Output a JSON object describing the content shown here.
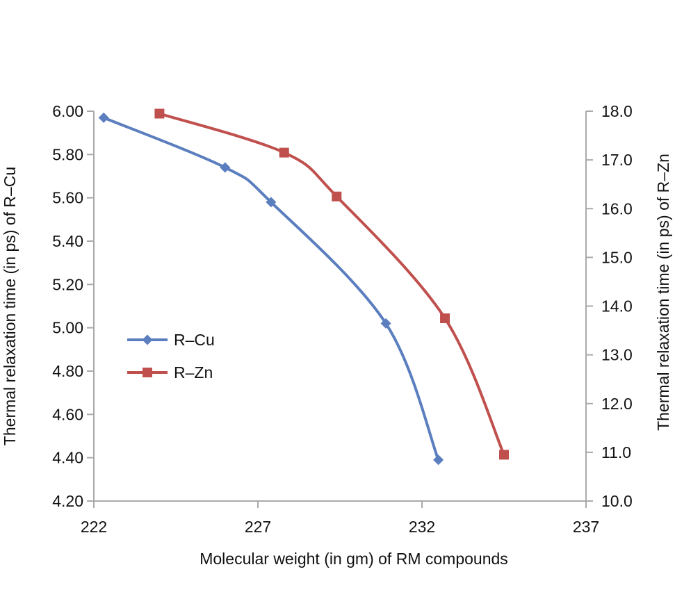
{
  "chart_data": {
    "type": "line",
    "xlabel": "Molecular weight (in gm) of RM compounds",
    "ylabel": "Thermal relaxation time (in ps) of R–Cu",
    "y2label": "Thermal relaxation time (in ps) of R–Zn",
    "xlim": [
      222,
      237
    ],
    "ylim": [
      4.2,
      6.0
    ],
    "y2lim": [
      10.0,
      18.0
    ],
    "x_ticks": [
      "222",
      "227",
      "232",
      "237"
    ],
    "y_ticks": [
      "4.20",
      "4.40",
      "4.60",
      "4.80",
      "5.00",
      "5.20",
      "5.40",
      "5.60",
      "5.80",
      "6.00"
    ],
    "y2_ticks": [
      "10.0",
      "11.0",
      "12.0",
      "13.0",
      "14.0",
      "15.0",
      "16.0",
      "17.0",
      "18.0"
    ],
    "grid": false,
    "legend_position": "left-middle",
    "series": [
      {
        "name": "R–Cu",
        "axis": "left",
        "color": "#5b7ebf",
        "marker": "diamond",
        "x": [
          222.3,
          226.0,
          227.4,
          230.9,
          232.5
        ],
        "y": [
          5.97,
          5.74,
          5.58,
          5.02,
          4.39
        ]
      },
      {
        "name": "R–Zn",
        "axis": "right",
        "color": "#c0504d",
        "marker": "square",
        "x": [
          224.0,
          227.8,
          229.4,
          232.7,
          234.5
        ],
        "y": [
          17.95,
          17.15,
          16.25,
          13.75,
          10.95
        ]
      }
    ]
  }
}
